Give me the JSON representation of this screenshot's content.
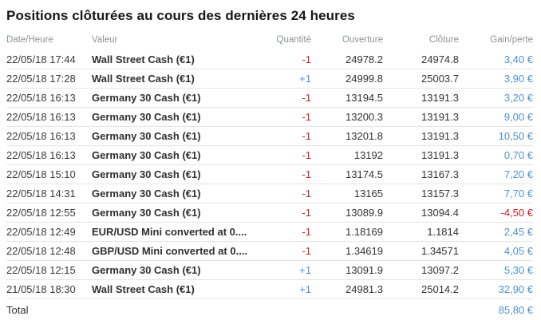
{
  "title": "Positions clôturées au cours des dernières 24 heures",
  "colors": {
    "positive_blue": "#5191d0",
    "negative_red": "#cf2128",
    "header_gray": "#8d939a",
    "row_separator": "#e4e4e4"
  },
  "table": {
    "columns": [
      {
        "key": "date-heure",
        "label": "Date/Heure"
      },
      {
        "key": "valeur",
        "label": "Valeur"
      },
      {
        "key": "quantite",
        "label": "Quantité"
      },
      {
        "key": "ouverture",
        "label": "Ouverture"
      },
      {
        "key": "cloture",
        "label": "Clôture"
      },
      {
        "key": "gain-perte",
        "label": "Gain/perte"
      }
    ],
    "rows": [
      {
        "date": "22/05/18 17:44",
        "instrument": "Wall Street Cash (€1)",
        "quantity": "-1",
        "open": "24978.2",
        "close": "24974.8",
        "gain": "3,40 €"
      },
      {
        "date": "22/05/18 17:28",
        "instrument": "Wall Street Cash (€1)",
        "quantity": "+1",
        "open": "24999.8",
        "close": "25003.7",
        "gain": "3,90 €"
      },
      {
        "date": "22/05/18 16:13",
        "instrument": "Germany 30 Cash (€1)",
        "quantity": "-1",
        "open": "13194.5",
        "close": "13191.3",
        "gain": "3,20 €"
      },
      {
        "date": "22/05/18 16:13",
        "instrument": "Germany 30 Cash (€1)",
        "quantity": "-1",
        "open": "13200.3",
        "close": "13191.3",
        "gain": "9,00 €"
      },
      {
        "date": "22/05/18 16:13",
        "instrument": "Germany 30 Cash (€1)",
        "quantity": "-1",
        "open": "13201.8",
        "close": "13191.3",
        "gain": "10,50 €"
      },
      {
        "date": "22/05/18 16:13",
        "instrument": "Germany 30 Cash (€1)",
        "quantity": "-1",
        "open": "13192",
        "close": "13191.3",
        "gain": "0,70 €"
      },
      {
        "date": "22/05/18 15:10",
        "instrument": "Germany 30 Cash (€1)",
        "quantity": "-1",
        "open": "13174.5",
        "close": "13167.3",
        "gain": "7,20 €"
      },
      {
        "date": "22/05/18 14:31",
        "instrument": "Germany 30 Cash (€1)",
        "quantity": "-1",
        "open": "13165",
        "close": "13157.3",
        "gain": "7,70 €"
      },
      {
        "date": "22/05/18 12:55",
        "instrument": "Germany 30 Cash (€1)",
        "quantity": "-1",
        "open": "13089.9",
        "close": "13094.4",
        "gain": "-4,50 €"
      },
      {
        "date": "22/05/18 12:49",
        "instrument": "EUR/USD Mini converted at 0....",
        "quantity": "-1",
        "open": "1.18169",
        "close": "1.1814",
        "gain": "2,45 €"
      },
      {
        "date": "22/05/18 12:48",
        "instrument": "GBP/USD Mini converted at 0....",
        "quantity": "-1",
        "open": "1.34619",
        "close": "1.34571",
        "gain": "4,05 €"
      },
      {
        "date": "22/05/18 12:15",
        "instrument": "Germany 30 Cash (€1)",
        "quantity": "+1",
        "open": "13091.9",
        "close": "13097.2",
        "gain": "5,30 €"
      },
      {
        "date": "21/05/18 18:30",
        "instrument": "Wall Street Cash (€1)",
        "quantity": "+1",
        "open": "24981.3",
        "close": "25014.2",
        "gain": "32,90 €"
      }
    ],
    "total": {
      "label": "Total",
      "value": "85,80 €"
    }
  }
}
